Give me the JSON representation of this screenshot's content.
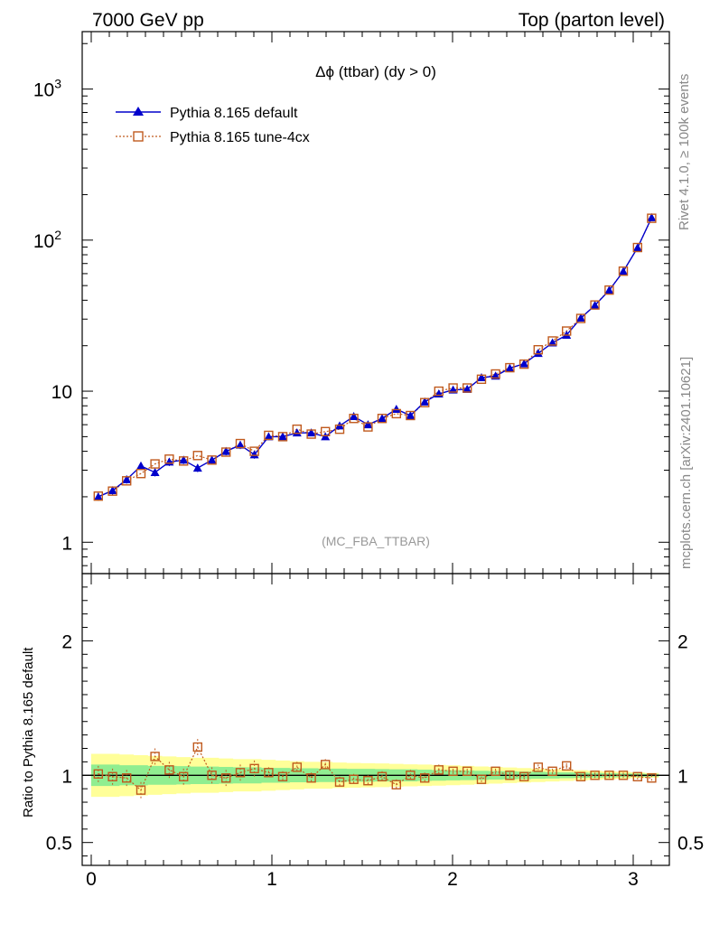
{
  "header": {
    "left": "7000 GeV pp",
    "right": "Top (parton level)"
  },
  "side_labels": {
    "rivet": "Rivet 4.1.0, ≥ 100k events",
    "mcplots": "mcplots.cern.ch [arXiv:2401.10621]"
  },
  "colors": {
    "default": "#0000cc",
    "tune": "#c05a1e",
    "band_inner": "#90ee90",
    "band_outer": "#ffff99"
  },
  "chart_data": [
    {
      "type": "line",
      "title": "Δϕ (ttbar) (dy > 0)",
      "watermark": "(MC_FBA_TTBAR)",
      "yscale": "log",
      "xlim": [
        -0.05,
        3.2
      ],
      "ylim": [
        0.62,
        2400
      ],
      "y_ticks": [
        {
          "value": 1,
          "label": "1"
        },
        {
          "value": 10,
          "label": "10"
        },
        {
          "value": 100,
          "label": "10",
          "sup": "2"
        },
        {
          "value": 1000,
          "label": "10",
          "sup": "3"
        }
      ],
      "legend": [
        {
          "key": "default",
          "label": "Pythia 8.165 default",
          "marker": "triangle"
        },
        {
          "key": "tune",
          "label": "Pythia 8.165 tune-4cx",
          "marker": "open-square"
        }
      ],
      "x": [
        0.039,
        0.118,
        0.196,
        0.275,
        0.353,
        0.432,
        0.511,
        0.589,
        0.668,
        0.746,
        0.825,
        0.903,
        0.982,
        1.06,
        1.139,
        1.218,
        1.296,
        1.375,
        1.453,
        1.532,
        1.61,
        1.689,
        1.767,
        1.846,
        1.924,
        2.003,
        2.081,
        2.16,
        2.238,
        2.317,
        2.396,
        2.474,
        2.553,
        2.631,
        2.71,
        2.788,
        2.867,
        2.945,
        3.024,
        3.102
      ],
      "series": [
        {
          "name": "Pythia 8.165 default",
          "values": [
            2.0,
            2.2,
            2.6,
            3.2,
            2.9,
            3.4,
            3.5,
            3.1,
            3.5,
            4.0,
            4.4,
            3.8,
            5.0,
            5.0,
            5.3,
            5.3,
            5.0,
            5.9,
            6.8,
            6.0,
            6.6,
            7.6,
            6.9,
            8.5,
            9.6,
            10.2,
            10.3,
            12.3,
            12.6,
            14.2,
            15.2,
            17.8,
            20.9,
            23.5,
            30.5,
            37.0,
            46.5,
            62.0,
            89.0,
            141.0
          ]
        },
        {
          "name": "Pythia 8.165 tune-4cx",
          "values": [
            2.02,
            2.18,
            2.55,
            2.85,
            3.3,
            3.55,
            3.45,
            3.75,
            3.5,
            3.95,
            4.5,
            4.0,
            5.1,
            5.0,
            5.6,
            5.2,
            5.4,
            5.6,
            6.6,
            5.8,
            6.6,
            7.1,
            6.9,
            8.4,
            10.0,
            10.5,
            10.5,
            12.0,
            13.0,
            14.3,
            15.1,
            18.8,
            21.5,
            25.0,
            30.3,
            37.2,
            46.7,
            62.3,
            89.3,
            139.5
          ]
        }
      ]
    },
    {
      "type": "line",
      "ylabel": "Ratio to Pythia 8.165 default",
      "xlim": [
        -0.05,
        3.2
      ],
      "ylim": [
        0.33,
        2.5
      ],
      "x_ticks": [
        0,
        1,
        2,
        3
      ],
      "y_ticks": [
        0.5,
        1,
        2
      ],
      "reference": 1,
      "band_inner_halfwidth": [
        0.08,
        0.08,
        0.075,
        0.075,
        0.07,
        0.07,
        0.068,
        0.065,
        0.065,
        0.062,
        0.06,
        0.06,
        0.055,
        0.055,
        0.052,
        0.052,
        0.05,
        0.05,
        0.048,
        0.048,
        0.046,
        0.045,
        0.045,
        0.042,
        0.04,
        0.038,
        0.036,
        0.034,
        0.032,
        0.03,
        0.028,
        0.026,
        0.024,
        0.022,
        0.02,
        0.018,
        0.016,
        0.014,
        0.012,
        0.01
      ],
      "band_outer_halfwidth": [
        0.16,
        0.16,
        0.155,
        0.15,
        0.145,
        0.14,
        0.135,
        0.13,
        0.13,
        0.125,
        0.12,
        0.12,
        0.115,
        0.11,
        0.105,
        0.1,
        0.1,
        0.095,
        0.092,
        0.09,
        0.088,
        0.085,
        0.082,
        0.08,
        0.077,
        0.074,
        0.07,
        0.066,
        0.062,
        0.058,
        0.054,
        0.05,
        0.046,
        0.042,
        0.038,
        0.034,
        0.03,
        0.026,
        0.022,
        0.018
      ],
      "series": [
        {
          "name": "Pythia 8.165 tune-4cx",
          "values": [
            1.01,
            0.99,
            0.98,
            0.89,
            1.14,
            1.04,
            0.99,
            1.21,
            1.0,
            0.98,
            1.02,
            1.05,
            1.02,
            0.99,
            1.06,
            0.98,
            1.08,
            0.95,
            0.97,
            0.96,
            0.99,
            0.93,
            1.0,
            0.98,
            1.04,
            1.03,
            1.03,
            0.97,
            1.03,
            1.0,
            0.99,
            1.06,
            1.03,
            1.07,
            0.99,
            1.0,
            1.0,
            1.0,
            0.99,
            0.98
          ]
        }
      ]
    }
  ]
}
